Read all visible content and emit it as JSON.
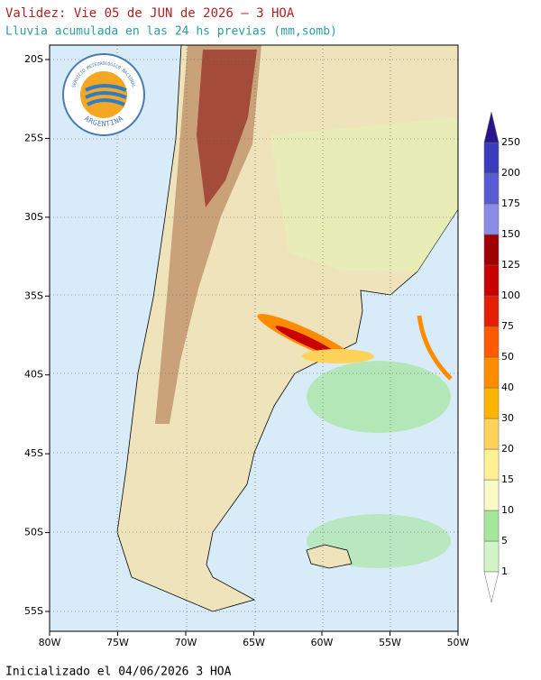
{
  "header": {
    "title": "Validez: Vie 05 de JUN de 2026 – 3 HOA",
    "subtitle": "Lluvia acumulada en las 24 hs previas (mm,somb)"
  },
  "logo": {
    "top": "SERVICIO METEOROLÓGICO NACIONAL",
    "bottom": "ARGENTINA"
  },
  "map": {
    "lat_labels": [
      "20S",
      "25S",
      "30S",
      "35S",
      "40S",
      "45S",
      "50S",
      "55S"
    ],
    "lon_labels": [
      "80W",
      "75W",
      "70W",
      "65W",
      "60W",
      "55W",
      "50W"
    ]
  },
  "colorbar": {
    "levels": [
      "1",
      "5",
      "10",
      "15",
      "20",
      "30",
      "40",
      "50",
      "75",
      "100",
      "125",
      "150",
      "175",
      "200",
      "250"
    ],
    "colors": [
      "#d2f5c8",
      "#a5e69b",
      "#fafac8",
      "#fff096",
      "#ffd25a",
      "#ffb400",
      "#ff8c00",
      "#ff5a00",
      "#e61e00",
      "#c80000",
      "#a00000",
      "#8c8ce6",
      "#5a5ad2",
      "#3c3cbe",
      "#28148c"
    ]
  },
  "footer": "Inicializado el 04/06/2026 3 HOA"
}
